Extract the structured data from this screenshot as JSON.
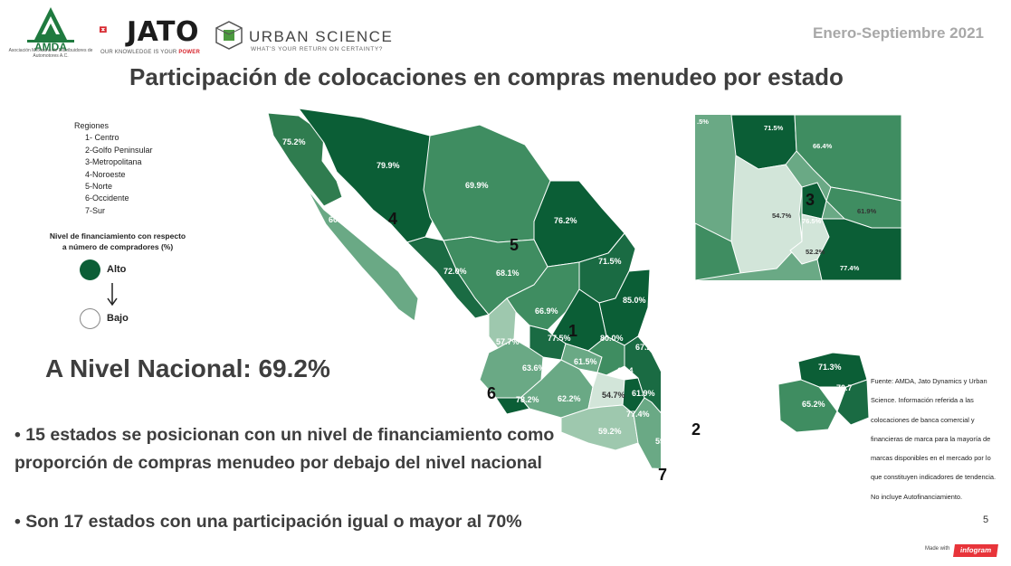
{
  "header": {
    "amda_logo_text": "AMDA",
    "amda_subtitle": "Asociación Mexicana de Distribuidores de Automotores A.C.",
    "jato_name": "JATO",
    "jato_tagline_prefix": "OUR KNOWLEDGE IS YOUR ",
    "jato_tagline_emphasis": "POWER",
    "urban_science_name": "URBAN SCIENCE",
    "urban_science_tagline": "WHAT'S YOUR RETURN ON CERTAINTY?",
    "period": "Enero-Septiembre  2021"
  },
  "title": "Participación de colocaciones en compras menudeo por estado",
  "regions_legend": {
    "title": "Regiones",
    "items": [
      "1- Centro",
      "2-Golfo Peninsular",
      "3-Metropolitana",
      "4-Noroeste",
      "5-Norte",
      "6-Occidente",
      "7-Sur"
    ]
  },
  "financing_legend": {
    "title_line1": "Nivel de financiamiento con respecto",
    "title_line2": "a número de compradores (%)",
    "high_label": "Alto",
    "low_label": "Bajo",
    "high_color": "#0b5e36",
    "low_color": "#ffffff"
  },
  "national": "A Nivel Nacional: 69.2%",
  "bullets": [
    "15 estados se posicionan con un nivel de financiamiento como proporción de compras menudeo por debajo del nivel nacional",
    "Son 17 estados con una participación igual o mayor al 70%"
  ],
  "map_labels": {
    "states": [
      "75.2%",
      "79.9%",
      "60.2%",
      "69.9%",
      "76.2%",
      "72.0%",
      "68.1%",
      "71.5%",
      "85.0%",
      "66.9%",
      "77.5%",
      "80.0%",
      "57.7%",
      "67.2",
      "61.5%",
      "66.4",
      "63.6%",
      "78.2%",
      "62.2%",
      "54.7%",
      "61.9%",
      "77.4%",
      "59.2%",
      "59.4%",
      "73.3%",
      "77.7%",
      "71.3%",
      "70.7",
      "65.2%"
    ],
    "region_numbers": [
      "1",
      "2",
      "4",
      "5",
      "6",
      "7"
    ]
  },
  "inset_labels": {
    "values": [
      ".5%",
      "71.5%",
      "66.4%",
      "54.7%",
      "76.5%",
      "61.9%",
      "52.2%",
      "77.4%"
    ],
    "region_number": "3"
  },
  "source": "Fuente: AMDA, Jato Dynamics y Urban Science. Información referida a las colocaciones de banca comercial y financieras de marca para la mayoría de marcas disponibles en el mercado por lo que constituyen indicadores de tendencia. No incluye Autofinanciamiento.",
  "page_number": "5",
  "footer": {
    "made_with": "Made with",
    "brand": "infogram"
  }
}
